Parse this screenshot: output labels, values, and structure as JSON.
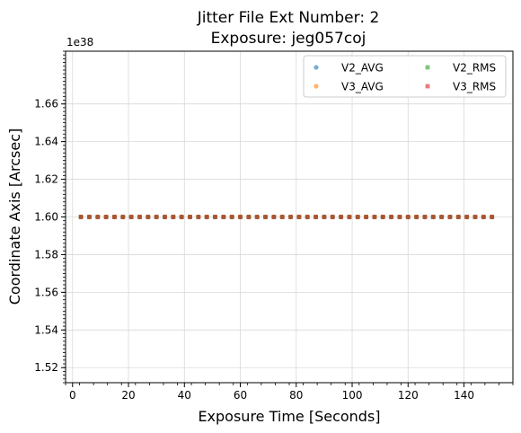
{
  "chart_data": {
    "type": "scatter",
    "title_line1": "Jitter File Ext Number: 2",
    "title_line2": "Exposure: jeg057coj",
    "xlabel": "Exposure Time [Seconds]",
    "ylabel": "Coordinate Axis [Arcsec]",
    "y_offset_label": "1e38",
    "xlim": [
      -2.5,
      157.5
    ],
    "ylim": [
      1.512,
      1.688
    ],
    "x_ticks": [
      0,
      20,
      40,
      60,
      80,
      100,
      120,
      140
    ],
    "x_tick_labels": [
      "0",
      "20",
      "40",
      "60",
      "80",
      "100",
      "120",
      "140"
    ],
    "y_ticks": [
      1.52,
      1.54,
      1.56,
      1.58,
      1.6,
      1.62,
      1.64,
      1.66
    ],
    "y_tick_labels": [
      "1.52",
      "1.54",
      "1.56",
      "1.58",
      "1.60",
      "1.62",
      "1.64",
      "1.66"
    ],
    "grid": true,
    "legend_position": "top-right",
    "x_start": 3,
    "x_step": 3,
    "x_count": 50,
    "series": [
      {
        "name": "V2_AVG",
        "marker": "circle",
        "color": "#1f77b4",
        "y": 1.6
      },
      {
        "name": "V3_AVG",
        "marker": "circle",
        "color": "#ff7f0e",
        "y": 1.6
      },
      {
        "name": "V2_RMS",
        "marker": "square",
        "color": "#2ca02c",
        "y": 1.6
      },
      {
        "name": "V3_RMS",
        "marker": "square",
        "color": "#d62728",
        "y": 1.6
      }
    ]
  }
}
